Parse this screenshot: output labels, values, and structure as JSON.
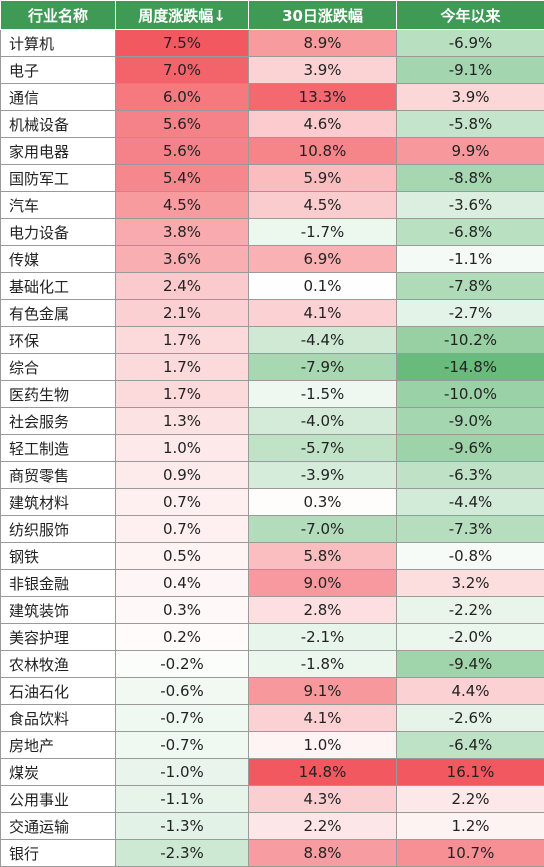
{
  "table": {
    "headers": [
      "行业名称",
      "周度涨跌幅↓",
      "30日涨跌幅",
      "今年以来"
    ],
    "colors": {
      "header_bg": "#3f9a55",
      "positive_max": "#f2585f",
      "negative_max": "#5cb56f",
      "neutral": "#ffffff"
    }
  },
  "chart_data": {
    "type": "table",
    "columns": [
      "行业名称",
      "周度涨跌幅↓",
      "30日涨跌幅",
      "今年以来"
    ],
    "rows": [
      {
        "name": "计算机",
        "values": [
          "7.5%",
          "8.9%",
          "-6.9%"
        ]
      },
      {
        "name": "电子",
        "values": [
          "7.0%",
          "3.9%",
          "-9.1%"
        ]
      },
      {
        "name": "通信",
        "values": [
          "6.0%",
          "13.3%",
          "3.9%"
        ]
      },
      {
        "name": "机械设备",
        "values": [
          "5.6%",
          "4.6%",
          "-5.8%"
        ]
      },
      {
        "name": "家用电器",
        "values": [
          "5.6%",
          "10.8%",
          "9.9%"
        ]
      },
      {
        "name": "国防军工",
        "values": [
          "5.4%",
          "5.9%",
          "-8.8%"
        ]
      },
      {
        "name": "汽车",
        "values": [
          "4.5%",
          "4.5%",
          "-3.6%"
        ]
      },
      {
        "name": "电力设备",
        "values": [
          "3.8%",
          "-1.7%",
          "-6.8%"
        ]
      },
      {
        "name": "传媒",
        "values": [
          "3.6%",
          "6.9%",
          "-1.1%"
        ]
      },
      {
        "name": "基础化工",
        "values": [
          "2.4%",
          "0.1%",
          "-7.8%"
        ]
      },
      {
        "name": "有色金属",
        "values": [
          "2.1%",
          "4.1%",
          "-2.7%"
        ]
      },
      {
        "name": "环保",
        "values": [
          "1.7%",
          "-4.4%",
          "-10.2%"
        ]
      },
      {
        "name": "综合",
        "values": [
          "1.7%",
          "-7.9%",
          "-14.8%"
        ]
      },
      {
        "name": "医药生物",
        "values": [
          "1.7%",
          "-1.5%",
          "-10.0%"
        ]
      },
      {
        "name": "社会服务",
        "values": [
          "1.3%",
          "-4.0%",
          "-9.0%"
        ]
      },
      {
        "name": "轻工制造",
        "values": [
          "1.0%",
          "-5.7%",
          "-9.6%"
        ]
      },
      {
        "name": "商贸零售",
        "values": [
          "0.9%",
          "-3.9%",
          "-6.3%"
        ]
      },
      {
        "name": "建筑材料",
        "values": [
          "0.7%",
          "0.3%",
          "-4.4%"
        ]
      },
      {
        "name": "纺织服饰",
        "values": [
          "0.7%",
          "-7.0%",
          "-7.3%"
        ]
      },
      {
        "name": "钢铁",
        "values": [
          "0.5%",
          "5.8%",
          "-0.8%"
        ]
      },
      {
        "name": "非银金融",
        "values": [
          "0.4%",
          "9.0%",
          "3.2%"
        ]
      },
      {
        "name": "建筑装饰",
        "values": [
          "0.3%",
          "2.8%",
          "-2.2%"
        ]
      },
      {
        "name": "美容护理",
        "values": [
          "0.2%",
          "-2.1%",
          "-2.0%"
        ]
      },
      {
        "name": "农林牧渔",
        "values": [
          "-0.2%",
          "-1.8%",
          "-9.4%"
        ]
      },
      {
        "name": "石油石化",
        "values": [
          "-0.6%",
          "9.1%",
          "4.4%"
        ]
      },
      {
        "name": "食品饮料",
        "values": [
          "-0.7%",
          "4.1%",
          "-2.6%"
        ]
      },
      {
        "name": "房地产",
        "values": [
          "-0.7%",
          "1.0%",
          "-6.4%"
        ]
      },
      {
        "name": "煤炭",
        "values": [
          "-1.0%",
          "14.8%",
          "16.1%"
        ]
      },
      {
        "name": "公用事业",
        "values": [
          "-1.1%",
          "4.3%",
          "2.2%"
        ]
      },
      {
        "name": "交通运输",
        "values": [
          "-1.3%",
          "2.2%",
          "1.2%"
        ]
      },
      {
        "name": "银行",
        "values": [
          "-2.3%",
          "8.8%",
          "10.7%"
        ]
      }
    ]
  }
}
